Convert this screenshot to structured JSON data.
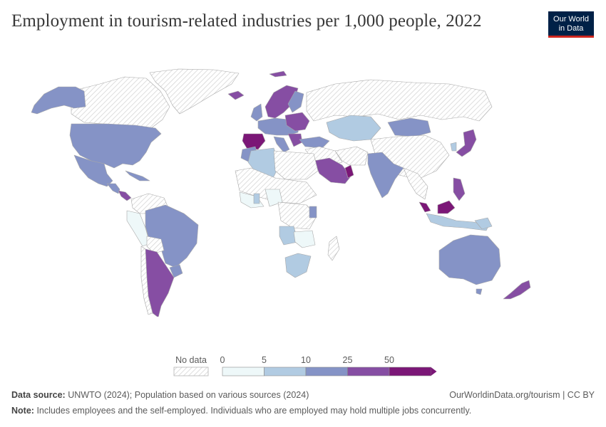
{
  "header": {
    "title": "Employment in tourism-related industries per 1,000 people, 2022"
  },
  "logo": {
    "line1": "Our World",
    "line2": "in Data"
  },
  "legend": {
    "no_data_label": "No data",
    "bins": [
      {
        "label": "0",
        "color": "#eef8f9"
      },
      {
        "label": "5",
        "color": "#b1cbe2"
      },
      {
        "label": "10",
        "color": "#8593c6"
      },
      {
        "label": "25",
        "color": "#864ea3"
      },
      {
        "label": "50",
        "color": "#7b1777"
      }
    ]
  },
  "colors": {
    "no_data": "#e4e4e4",
    "stroke": "#9a9a9a",
    "hatch": "#cfcfcf"
  },
  "footer": {
    "source_label": "Data source:",
    "source_text": "UNWTO (2024); Population based on various sources (2024)",
    "credit": "OurWorldinData.org/tourism | CC BY",
    "note_label": "Note:",
    "note_text": "Includes employees and the self-employed. Individuals who are employed may hold multiple jobs concurrently."
  }
}
